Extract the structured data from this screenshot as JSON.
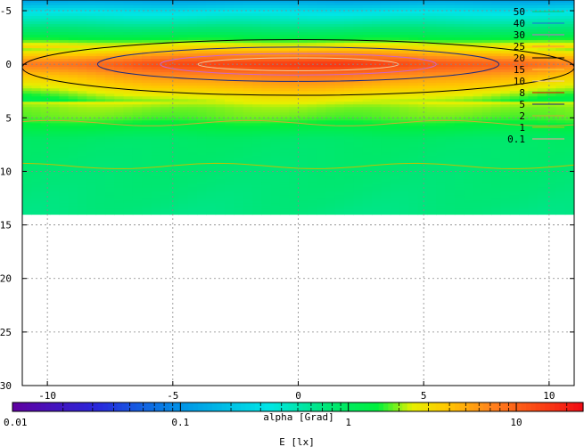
{
  "chart_data": {
    "type": "heatmap",
    "xlabel": "alpha [Grad]",
    "colorbar_label": "E [lx]",
    "xlim": [
      -11,
      11
    ],
    "ylim": [
      -6,
      30
    ],
    "y_axis_inverted": true,
    "x_ticks": [
      -10,
      -5,
      0,
      5,
      10
    ],
    "y_ticks": [
      -5,
      0,
      5,
      10,
      15,
      20,
      25,
      30
    ],
    "x_tick_labels": [
      "-10",
      "-5",
      "0",
      "5",
      "10"
    ],
    "y_tick_labels": [
      "-5",
      "0",
      "5",
      "10",
      "15",
      "20",
      "25",
      "30"
    ],
    "colorbar_scale": "log",
    "colorbar_range": [
      0.01,
      25
    ],
    "colorbar_ticks": [
      0.01,
      0.1,
      1,
      10
    ],
    "colorbar_tick_labels": [
      "0.01",
      "0.1",
      "1",
      "10"
    ],
    "grid": true,
    "data_extent_y": [
      -6,
      14
    ],
    "field_profile": [
      {
        "y": -6,
        "E": 0.12
      },
      {
        "y": -5,
        "E": 0.3
      },
      {
        "y": -4,
        "E": 0.5
      },
      {
        "y": -3,
        "E": 0.9
      },
      {
        "y": -2,
        "E": 2.0
      },
      {
        "y": -1,
        "E": 6
      },
      {
        "y": 0,
        "E": 16
      },
      {
        "y": 1,
        "E": 8
      },
      {
        "y": 2,
        "E": 5
      },
      {
        "y": 3,
        "E": 3
      },
      {
        "y": 4,
        "E": 2
      },
      {
        "y": 5,
        "E": 1.8
      },
      {
        "y": 6,
        "E": 1.3
      },
      {
        "y": 7,
        "E": 0.9
      },
      {
        "y": 8,
        "E": 0.85
      },
      {
        "y": 10,
        "E": 0.8
      },
      {
        "y": 12,
        "E": 0.75
      },
      {
        "y": 14,
        "E": 0.7
      }
    ],
    "contour_levels": [
      {
        "value": 50,
        "label": "50",
        "color": "#00cc66"
      },
      {
        "value": 40,
        "label": "40",
        "color": "#1a6ed8"
      },
      {
        "value": 30,
        "label": "30",
        "color": "#cc66cc"
      },
      {
        "value": 25,
        "label": "25",
        "color": "#ff9933"
      },
      {
        "value": 20,
        "label": "20",
        "color": "#000000"
      },
      {
        "value": 15,
        "label": "15",
        "color": "#ffcc33"
      },
      {
        "value": 10,
        "label": "10",
        "color": "#f0d0a0"
      },
      {
        "value": 8,
        "label": "8",
        "color": "#dd0000"
      },
      {
        "value": 5,
        "label": "5",
        "color": "#1a2a80"
      },
      {
        "value": 2,
        "label": "2",
        "color": "#ccaa33"
      },
      {
        "value": 1,
        "label": "1",
        "color": "#c0c000"
      },
      {
        "value": 0.1,
        "label": "0.1",
        "color": "#ff9999"
      }
    ],
    "contours_drawn": [
      {
        "y_center": 0,
        "half_width_x": 4,
        "half_height_y": 0.6,
        "color": "#f0d0a0"
      },
      {
        "y_center": 0,
        "half_width_x": 5.5,
        "half_height_y": 1.0,
        "color": "#cc66cc"
      },
      {
        "y_center": 0,
        "half_width_x": 8,
        "half_height_y": 1.6,
        "color": "#1a2a80"
      },
      {
        "y_center": 0.3,
        "half_width_x": 11,
        "half_height_y": 2.6,
        "color": "#000000"
      }
    ]
  }
}
